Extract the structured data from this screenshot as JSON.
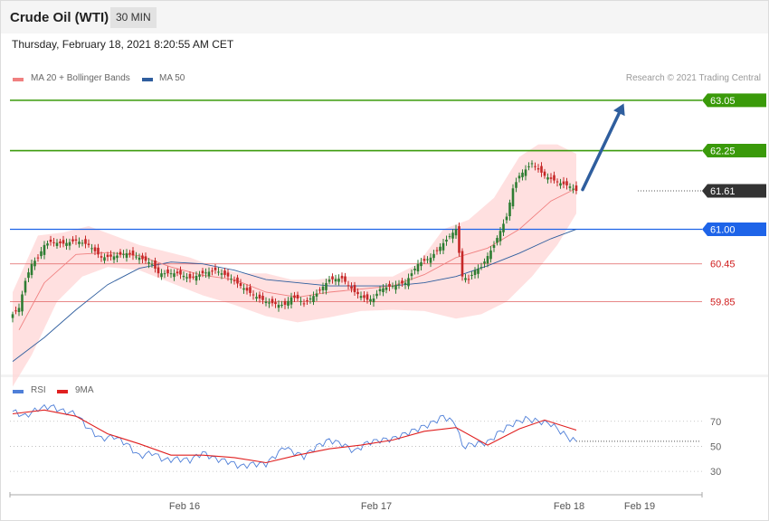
{
  "header": {
    "instrument": "Crude Oil (WTI)",
    "timeframe": "30 MIN",
    "datetime": "Thursday, February 18, 2021 8:20:55 AM CET",
    "credit": "Research © 2021 Trading Central"
  },
  "legend_main": [
    {
      "label": "MA 20 + Bollinger Bands",
      "color": "#f08080"
    },
    {
      "label": "MA 50",
      "color": "#2f5e9e"
    }
  ],
  "legend_rsi": [
    {
      "label": "RSI",
      "color": "#4f7fd8"
    },
    {
      "label": "9MA",
      "color": "#e02020"
    }
  ],
  "colors": {
    "up_candle": "#2e7d32",
    "down_candle": "#c62828",
    "resistance": "#3a9a0a",
    "pivot": "#1e64e8",
    "support": "#e06060",
    "current": "#333333",
    "arrow": "#2f5e9e",
    "bands": "#ffd6d6"
  },
  "chart_data": [
    {
      "type": "candlestick",
      "y_range": [
        58.75,
        63.35
      ],
      "x_ticks": [
        "Feb 16",
        "Feb 17",
        "Feb 18",
        "Feb 19"
      ],
      "levels": [
        {
          "label": "63.05",
          "value": 63.05,
          "kind": "resistance"
        },
        {
          "label": "62.25",
          "value": 62.25,
          "kind": "resistance"
        },
        {
          "label": "61.61",
          "value": 61.61,
          "kind": "current"
        },
        {
          "label": "61.00",
          "value": 61.0,
          "kind": "pivot"
        },
        {
          "label": "60.45",
          "value": 60.45,
          "kind": "support"
        },
        {
          "label": "59.85",
          "value": 59.85,
          "kind": "support"
        }
      ],
      "close_path": [
        [
          0,
          59.65
        ],
        [
          2,
          59.75
        ],
        [
          4,
          60.18
        ],
        [
          6,
          60.45
        ],
        [
          8,
          60.55
        ],
        [
          10,
          60.75
        ],
        [
          12,
          60.8
        ],
        [
          16,
          60.77
        ],
        [
          20,
          60.82
        ],
        [
          24,
          60.75
        ],
        [
          28,
          60.55
        ],
        [
          32,
          60.57
        ],
        [
          36,
          60.62
        ],
        [
          40,
          60.55
        ],
        [
          44,
          60.45
        ],
        [
          46,
          60.3
        ],
        [
          48,
          60.3
        ],
        [
          52,
          60.3
        ],
        [
          56,
          60.22
        ],
        [
          60,
          60.3
        ],
        [
          64,
          60.35
        ],
        [
          68,
          60.25
        ],
        [
          72,
          60.1
        ],
        [
          76,
          59.95
        ],
        [
          80,
          59.85
        ],
        [
          84,
          59.8
        ],
        [
          86,
          59.8
        ],
        [
          88,
          59.92
        ],
        [
          90,
          59.9
        ],
        [
          92,
          59.82
        ],
        [
          94,
          59.9
        ],
        [
          96,
          59.98
        ],
        [
          100,
          60.2
        ],
        [
          104,
          60.22
        ],
        [
          108,
          60.0
        ],
        [
          112,
          59.88
        ],
        [
          114,
          59.9
        ],
        [
          116,
          60.05
        ],
        [
          120,
          60.1
        ],
        [
          124,
          60.15
        ],
        [
          128,
          60.45
        ],
        [
          132,
          60.55
        ],
        [
          136,
          60.78
        ],
        [
          140,
          61.0
        ],
        [
          142,
          60.25
        ],
        [
          144,
          60.2
        ],
        [
          146,
          60.35
        ],
        [
          148,
          60.4
        ],
        [
          152,
          60.75
        ],
        [
          156,
          61.2
        ],
        [
          158,
          61.65
        ],
        [
          160,
          61.85
        ],
        [
          164,
          62.05
        ],
        [
          168,
          61.85
        ],
        [
          172,
          61.75
        ],
        [
          176,
          61.68
        ],
        [
          178,
          61.61
        ]
      ],
      "ma20_path": [
        [
          2,
          59.4
        ],
        [
          10,
          60.15
        ],
        [
          20,
          60.6
        ],
        [
          30,
          60.63
        ],
        [
          40,
          60.58
        ],
        [
          50,
          60.4
        ],
        [
          60,
          60.27
        ],
        [
          70,
          60.2
        ],
        [
          80,
          60.0
        ],
        [
          90,
          59.92
        ],
        [
          100,
          60.0
        ],
        [
          110,
          60.05
        ],
        [
          120,
          60.1
        ],
        [
          130,
          60.28
        ],
        [
          140,
          60.55
        ],
        [
          150,
          60.7
        ],
        [
          160,
          61.0
        ],
        [
          170,
          61.45
        ],
        [
          178,
          61.65
        ]
      ],
      "ma50_path": [
        [
          0,
          58.9
        ],
        [
          10,
          59.28
        ],
        [
          20,
          59.72
        ],
        [
          30,
          60.12
        ],
        [
          40,
          60.38
        ],
        [
          50,
          60.48
        ],
        [
          60,
          60.45
        ],
        [
          70,
          60.35
        ],
        [
          80,
          60.2
        ],
        [
          90,
          60.15
        ],
        [
          100,
          60.1
        ],
        [
          110,
          60.1
        ],
        [
          120,
          60.1
        ],
        [
          130,
          60.15
        ],
        [
          140,
          60.25
        ],
        [
          150,
          60.42
        ],
        [
          160,
          60.62
        ],
        [
          170,
          60.85
        ],
        [
          178,
          61.0
        ]
      ],
      "bb_upper": [
        [
          0,
          60.0
        ],
        [
          8,
          60.9
        ],
        [
          16,
          60.95
        ],
        [
          24,
          61.05
        ],
        [
          32,
          60.9
        ],
        [
          40,
          60.75
        ],
        [
          48,
          60.65
        ],
        [
          56,
          60.55
        ],
        [
          64,
          60.4
        ],
        [
          72,
          60.3
        ],
        [
          80,
          60.3
        ],
        [
          88,
          60.2
        ],
        [
          96,
          60.2
        ],
        [
          104,
          60.25
        ],
        [
          112,
          60.25
        ],
        [
          120,
          60.25
        ],
        [
          128,
          60.45
        ],
        [
          136,
          61.0
        ],
        [
          144,
          61.15
        ],
        [
          152,
          61.5
        ],
        [
          160,
          62.15
        ],
        [
          166,
          62.35
        ],
        [
          172,
          62.35
        ],
        [
          178,
          62.2
        ]
      ],
      "bb_lower": [
        [
          0,
          58.5
        ],
        [
          6,
          59.0
        ],
        [
          14,
          59.85
        ],
        [
          22,
          60.25
        ],
        [
          30,
          60.4
        ],
        [
          40,
          60.35
        ],
        [
          50,
          60.15
        ],
        [
          60,
          59.95
        ],
        [
          70,
          59.8
        ],
        [
          80,
          59.62
        ],
        [
          90,
          59.52
        ],
        [
          100,
          59.6
        ],
        [
          110,
          59.7
        ],
        [
          120,
          59.72
        ],
        [
          130,
          59.7
        ],
        [
          140,
          59.58
        ],
        [
          148,
          59.65
        ],
        [
          156,
          59.85
        ],
        [
          164,
          60.25
        ],
        [
          172,
          60.75
        ],
        [
          178,
          61.25
        ]
      ],
      "arrow": {
        "from": [
          180,
          61.63
        ],
        "to": [
          193,
          63.0
        ]
      }
    },
    {
      "type": "line",
      "name": "RSI",
      "y_range": [
        20,
        85
      ],
      "y_ticks": [
        30,
        50,
        70
      ],
      "current": 54,
      "rsi_path": [
        [
          0,
          78
        ],
        [
          4,
          74
        ],
        [
          8,
          80
        ],
        [
          12,
          82
        ],
        [
          16,
          78
        ],
        [
          20,
          76
        ],
        [
          24,
          64
        ],
        [
          28,
          56
        ],
        [
          32,
          58
        ],
        [
          36,
          52
        ],
        [
          40,
          42
        ],
        [
          44,
          45
        ],
        [
          48,
          39
        ],
        [
          52,
          40
        ],
        [
          56,
          39
        ],
        [
          60,
          45
        ],
        [
          64,
          40
        ],
        [
          68,
          38
        ],
        [
          72,
          34
        ],
        [
          76,
          36
        ],
        [
          80,
          36
        ],
        [
          84,
          45
        ],
        [
          86,
          50
        ],
        [
          88,
          46
        ],
        [
          92,
          42
        ],
        [
          96,
          50
        ],
        [
          100,
          55
        ],
        [
          104,
          52
        ],
        [
          108,
          46
        ],
        [
          112,
          53
        ],
        [
          116,
          55
        ],
        [
          120,
          56
        ],
        [
          124,
          60
        ],
        [
          128,
          64
        ],
        [
          132,
          68
        ],
        [
          136,
          74
        ],
        [
          140,
          68
        ],
        [
          142,
          50
        ],
        [
          146,
          52
        ],
        [
          150,
          53
        ],
        [
          154,
          62
        ],
        [
          158,
          68
        ],
        [
          162,
          72
        ],
        [
          166,
          70
        ],
        [
          170,
          68
        ],
        [
          174,
          60
        ],
        [
          176,
          56
        ],
        [
          178,
          54
        ]
      ],
      "ma9_path": [
        [
          0,
          76
        ],
        [
          10,
          79
        ],
        [
          20,
          74
        ],
        [
          30,
          60
        ],
        [
          40,
          52
        ],
        [
          50,
          43
        ],
        [
          60,
          43
        ],
        [
          70,
          41
        ],
        [
          80,
          37
        ],
        [
          90,
          43
        ],
        [
          100,
          48
        ],
        [
          110,
          51
        ],
        [
          120,
          55
        ],
        [
          130,
          62
        ],
        [
          140,
          65
        ],
        [
          150,
          51
        ],
        [
          160,
          64
        ],
        [
          168,
          71
        ],
        [
          178,
          63
        ]
      ]
    }
  ]
}
